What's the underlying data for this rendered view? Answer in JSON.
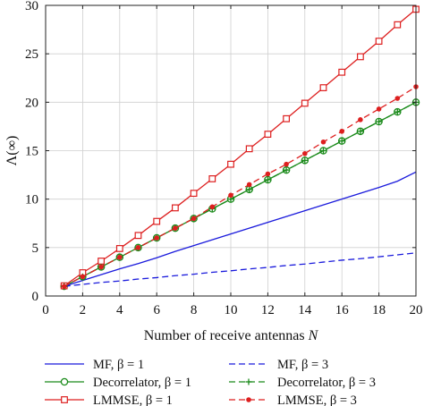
{
  "chart_data": {
    "type": "line",
    "title": "",
    "xlabel": "Number of receive antennas N",
    "ylabel": "Λ(∞)",
    "xlim": [
      0,
      20
    ],
    "ylim": [
      0,
      30
    ],
    "xticks": [
      0,
      2,
      4,
      6,
      8,
      10,
      12,
      14,
      16,
      18,
      20
    ],
    "yticks": [
      0,
      5,
      10,
      15,
      20,
      25,
      30
    ],
    "grid": true,
    "legend_position": "below plot, two columns",
    "series": [
      {
        "name": "MF, β = 1",
        "color": "#1a1adc",
        "dash": "solid",
        "marker": "none",
        "x": [
          1,
          2,
          3,
          4,
          5,
          6,
          7,
          8,
          9,
          10,
          11,
          12,
          13,
          14,
          15,
          16,
          17,
          18,
          19,
          20
        ],
        "y": [
          1.0,
          1.6,
          2.2,
          2.8,
          3.35,
          3.95,
          4.6,
          5.2,
          5.8,
          6.4,
          7.0,
          7.6,
          8.2,
          8.8,
          9.4,
          10.0,
          10.6,
          11.2,
          11.85,
          12.8
        ]
      },
      {
        "name": "Decorrelator, β = 1",
        "color": "#1a8a1a",
        "dash": "solid",
        "marker": "circle",
        "x": [
          1,
          2,
          3,
          4,
          5,
          6,
          7,
          8,
          9,
          10,
          11,
          12,
          13,
          14,
          15,
          16,
          17,
          18,
          19,
          20
        ],
        "y": [
          1,
          2,
          3,
          4,
          5,
          6,
          7,
          8,
          9,
          10,
          11,
          12,
          13,
          14,
          15,
          16,
          17,
          18,
          19,
          20
        ]
      },
      {
        "name": "LMMSE, β = 1",
        "color": "#dd1f1f",
        "dash": "solid",
        "marker": "square",
        "x": [
          1,
          2,
          3,
          4,
          5,
          6,
          7,
          8,
          9,
          10,
          11,
          12,
          13,
          14,
          15,
          16,
          17,
          18,
          19,
          20
        ],
        "y": [
          1.05,
          2.4,
          3.6,
          4.9,
          6.25,
          7.7,
          9.1,
          10.6,
          12.1,
          13.6,
          15.2,
          16.7,
          18.3,
          19.9,
          21.5,
          23.1,
          24.7,
          26.3,
          28.0,
          29.6
        ]
      },
      {
        "name": "MF, β = 3",
        "color": "#1a1adc",
        "dash": "dashed",
        "marker": "none",
        "x": [
          1,
          2,
          3,
          4,
          5,
          6,
          7,
          8,
          9,
          10,
          11,
          12,
          13,
          14,
          15,
          16,
          17,
          18,
          19,
          20
        ],
        "y": [
          1.0,
          1.2,
          1.4,
          1.55,
          1.75,
          1.9,
          2.1,
          2.25,
          2.45,
          2.6,
          2.8,
          2.95,
          3.15,
          3.3,
          3.5,
          3.7,
          3.85,
          4.05,
          4.25,
          4.45
        ]
      },
      {
        "name": "Decorrelator, β = 3",
        "color": "#1a8a1a",
        "dash": "dashed",
        "marker": "plus",
        "x": [
          1,
          2,
          3,
          4,
          5,
          6,
          7,
          8,
          9,
          10,
          11,
          12,
          13,
          14,
          15,
          16,
          17,
          18,
          19,
          20
        ],
        "y": [
          1.0,
          2.0,
          3.0,
          4.0,
          5.0,
          6.0,
          7.0,
          8.0,
          9.0,
          10.0,
          11.0,
          12.0,
          13.0,
          14.0,
          15.0,
          16.0,
          17.0,
          18.0,
          19.0,
          20.0
        ]
      },
      {
        "name": "LMMSE, β = 3",
        "color": "#dd1f1f",
        "dash": "dashed",
        "marker": "dot",
        "x": [
          1,
          2,
          3,
          4,
          5,
          6,
          7,
          8,
          9,
          10,
          11,
          12,
          13,
          14,
          15,
          16,
          17,
          18,
          19,
          20
        ],
        "y": [
          1.0,
          2.0,
          3.0,
          4.0,
          5.0,
          6.0,
          7.0,
          8.0,
          9.2,
          10.4,
          11.5,
          12.6,
          13.6,
          14.7,
          15.9,
          17.0,
          18.2,
          19.3,
          20.4,
          21.6
        ]
      }
    ]
  }
}
